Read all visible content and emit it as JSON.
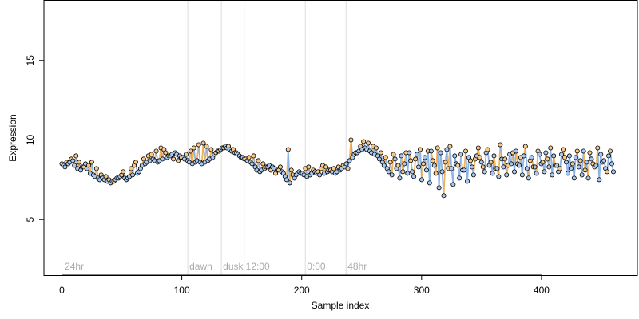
{
  "chart_data": {
    "type": "scatter",
    "title": "",
    "xlabel": "Sample index",
    "ylabel": "Expression",
    "xlim": [
      -15,
      480
    ],
    "ylim": [
      1.5,
      18.8
    ],
    "x_ticks": [
      0,
      100,
      200,
      300,
      400
    ],
    "y_ticks": [
      5,
      10,
      15
    ],
    "grid": false,
    "legend": "none",
    "colors": {
      "line_blue": "#8fb4e3",
      "line_orange": "#f2b35a",
      "point_blue": "#a9c8f0",
      "point_orange": "#f7c88a",
      "point_edge": "#000000",
      "vline": "#dddddd",
      "region_text": "#aaaaaa"
    },
    "regions": [
      {
        "x": 1,
        "label": "24hr"
      },
      {
        "x": 105,
        "label": "dawn"
      },
      {
        "x": 133,
        "label": "dusk"
      },
      {
        "x": 152,
        "label": "12:00"
      },
      {
        "x": 203,
        "label": "0:00"
      },
      {
        "x": 237,
        "label": "48hr"
      }
    ],
    "series": [
      {
        "color": "blue",
        "y": [
          8.4,
          8.3,
          8.5,
          8.6,
          8.7,
          8.4,
          8.2,
          8.1,
          8.3,
          8.5,
          8.2,
          7.9,
          7.8,
          7.7,
          7.6,
          7.5,
          7.6,
          7.5,
          7.4,
          7.3,
          7.4,
          7.5,
          7.6,
          7.7,
          7.6,
          7.5,
          7.6,
          7.7,
          7.8,
          7.9,
          8.0,
          8.2,
          8.4,
          8.5,
          8.6,
          8.7,
          8.8,
          8.7,
          8.6,
          8.7,
          8.8,
          8.9,
          9.0,
          9.1,
          9.2,
          9.1,
          9.0,
          8.9,
          8.8,
          8.7,
          8.6,
          8.5,
          8.6,
          8.7,
          8.6,
          8.5,
          8.6,
          8.7,
          8.8,
          8.9,
          9.1,
          9.3,
          9.4,
          9.5,
          9.6,
          9.5,
          9.4,
          9.3,
          9.2,
          9.1,
          9.0,
          8.9,
          8.8,
          8.7,
          8.6,
          8.5,
          8.3,
          8.1,
          8.0,
          8.1,
          8.2,
          8.3,
          8.4,
          8.3,
          8.2,
          8.1,
          8.0,
          7.9,
          7.7,
          7.5,
          7.3,
          7.6,
          7.8,
          7.9,
          8.0,
          7.9,
          7.8,
          7.7,
          7.8,
          7.9,
          8.0,
          7.9,
          7.8,
          7.9,
          8.0,
          8.1,
          8.0,
          7.9,
          8.0,
          8.1,
          8.2,
          8.3,
          8.5,
          8.7,
          8.9,
          9.1,
          9.2,
          9.3,
          9.4,
          9.5,
          9.4,
          9.3,
          9.2,
          9.1,
          9.0,
          8.8,
          8.6,
          8.4,
          8.2,
          8.0,
          7.8,
          8.8,
          8.2,
          7.6,
          9.0,
          8.5,
          7.9,
          9.2,
          8.0,
          7.7,
          9.1,
          8.3,
          7.5,
          8.9,
          8.1,
          7.3,
          9.3,
          8.4,
          7.0,
          9.2,
          8.0,
          6.5,
          9.4,
          8.2,
          7.2,
          9.0,
          8.5,
          7.6,
          9.1,
          8.1,
          7.4,
          8.9,
          8.3,
          7.8,
          9.0,
          8.6,
          8.0,
          9.2,
          8.4,
          7.9,
          9.0,
          8.2,
          7.7,
          8.8,
          8.3,
          7.8,
          9.1,
          8.5,
          8.0,
          9.3,
          8.4,
          7.8,
          9.0,
          8.2,
          7.6,
          8.9,
          8.3,
          7.9,
          9.1,
          8.5,
          8.0,
          9.2,
          8.3,
          7.8,
          9.0,
          8.4,
          8.0,
          9.1,
          8.6,
          7.9,
          9.0,
          8.2,
          7.6,
          8.9,
          8.3,
          7.8,
          9.3,
          8.6,
          7.6,
          8.8,
          8.4,
          7.5,
          9.1,
          8.7,
          8.2,
          9.0,
          8.5,
          8.0
        ]
      },
      {
        "color": "orange",
        "y": [
          8.5,
          8.6,
          8.8,
          9.0,
          8.6,
          8.3,
          8.4,
          8.6,
          8.2,
          7.8,
          7.7,
          7.5,
          7.4,
          7.6,
          7.8,
          8.0,
          8.2,
          8.4,
          8.6,
          8.8,
          9.0,
          9.1,
          9.3,
          9.5,
          9.4,
          9.2,
          9.0,
          8.8,
          8.7,
          8.9,
          9.1,
          9.3,
          9.5,
          9.7,
          9.8,
          9.6,
          9.4,
          9.2,
          9.3,
          9.5,
          9.6,
          9.4,
          9.2,
          8.9,
          8.8,
          8.9,
          9.0,
          8.7,
          8.5,
          8.3,
          8.1,
          7.9,
          8.1,
          8.3,
          9.4,
          8.1,
          7.8,
          7.9,
          8.2,
          8.3,
          8.1,
          8.0,
          8.2,
          8.4,
          8.3,
          8.1,
          8.2,
          8.3,
          8.4,
          8.2,
          10.0,
          9.2,
          9.6,
          9.9,
          9.8,
          9.6,
          9.5,
          9.2,
          8.9,
          8.6,
          9.1,
          8.4,
          8.0,
          9.2,
          8.7,
          8.8,
          9.4,
          8.5,
          9.3,
          8.7,
          7.9,
          9.5,
          8.6,
          8.2,
          9.6,
          8.4,
          8.1,
          9.3,
          8.7,
          8.8,
          9.5,
          8.9,
          8.3,
          9.4,
          8.6,
          8.2,
          9.7,
          8.8,
          8.4,
          9.2,
          8.5,
          8.9,
          9.6,
          8.7,
          8.3,
          9.3,
          8.6,
          8.8,
          9.5,
          8.4,
          8.2,
          9.4,
          8.9,
          8.5,
          9.3,
          8.7,
          8.1,
          9.2,
          8.5,
          8.3,
          9.5,
          8.6,
          8.0,
          9.3
        ]
      }
    ]
  }
}
